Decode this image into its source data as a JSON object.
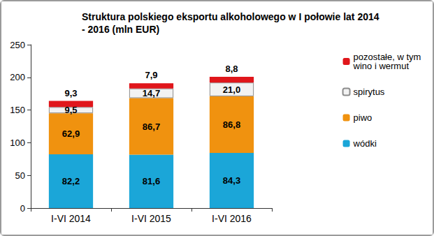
{
  "chart_data": {
    "type": "bar",
    "title": "Struktura polskiego eksportu alkoholowego w I połowie lat 2014 - 2016 (mln EUR)",
    "categories": [
      "I-VI 2014",
      "I-VI 2015",
      "I-VI 2016"
    ],
    "stacked": true,
    "data_labels": true,
    "legend": "right",
    "grid": false,
    "ylim": [
      0,
      250
    ],
    "yticks": [
      0,
      50,
      100,
      150,
      200,
      250
    ],
    "series": [
      {
        "name": "wódki",
        "color": "#1ba6d8",
        "values": [
          82.2,
          81.6,
          84.3
        ],
        "value_labels": [
          "82,2",
          "81,6",
          "84,3"
        ]
      },
      {
        "name": "piwo",
        "color": "#f0920f",
        "values": [
          62.9,
          86.7,
          86.8
        ],
        "value_labels": [
          "62,9",
          "86,7",
          "86,8"
        ]
      },
      {
        "name": "spirytus",
        "color": "#f2f2f2",
        "values": [
          9.5,
          14.7,
          21.0
        ],
        "value_labels": [
          "9,5",
          "14,7",
          "21,0"
        ]
      },
      {
        "name": "pozostałe, w tym wino i wermut",
        "color": "#e0161b",
        "values": [
          9.3,
          7.9,
          8.8
        ],
        "value_labels": [
          "9,3",
          "7,9",
          "8,8"
        ]
      }
    ]
  }
}
